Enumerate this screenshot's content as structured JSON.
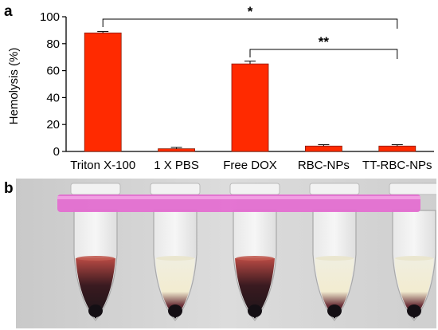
{
  "panels": {
    "a": "a",
    "b": "b"
  },
  "chart_data": {
    "type": "bar",
    "categories": [
      "Triton X-100",
      "1 X PBS",
      "Free DOX",
      "RBC-NPs",
      "TT-RBC-NPs"
    ],
    "values": [
      88,
      2,
      65,
      4,
      4
    ],
    "errors": [
      1,
      1,
      2,
      1,
      1
    ],
    "ylabel": "Hemolysis (%)",
    "xlabel": "",
    "ylim": [
      0,
      100
    ],
    "yticks": [
      0,
      20,
      40,
      60,
      80,
      100
    ],
    "bar_color": "#ff2a00",
    "grid": false,
    "significance": [
      {
        "from": 0,
        "to": 4,
        "label": "*"
      },
      {
        "from": 2,
        "to": 4,
        "label": "**"
      }
    ]
  },
  "photo": {
    "tube_count": 5,
    "band_color": "#e46bd0",
    "background": "#dadada"
  }
}
